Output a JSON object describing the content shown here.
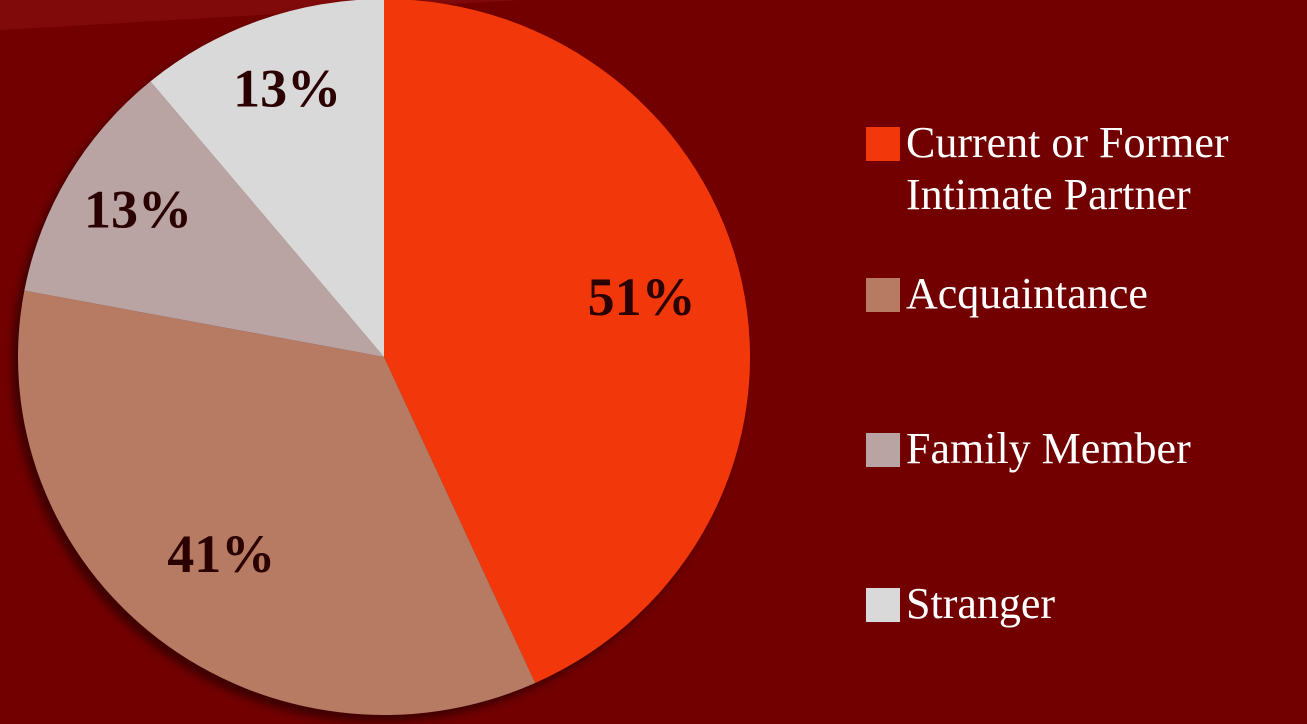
{
  "chart_data": {
    "type": "pie",
    "categories": [
      "Current or Former Intimate Partner",
      "Acquaintance",
      "Family Member",
      "Stranger"
    ],
    "values": [
      51,
      41,
      13,
      13
    ],
    "value_labels": [
      "51%",
      "41%",
      "13%",
      "13%"
    ],
    "colors": [
      "#f2380a",
      "#b77a62",
      "#b9a3a3",
      "#d9d9d9"
    ],
    "legend": "right"
  }
}
